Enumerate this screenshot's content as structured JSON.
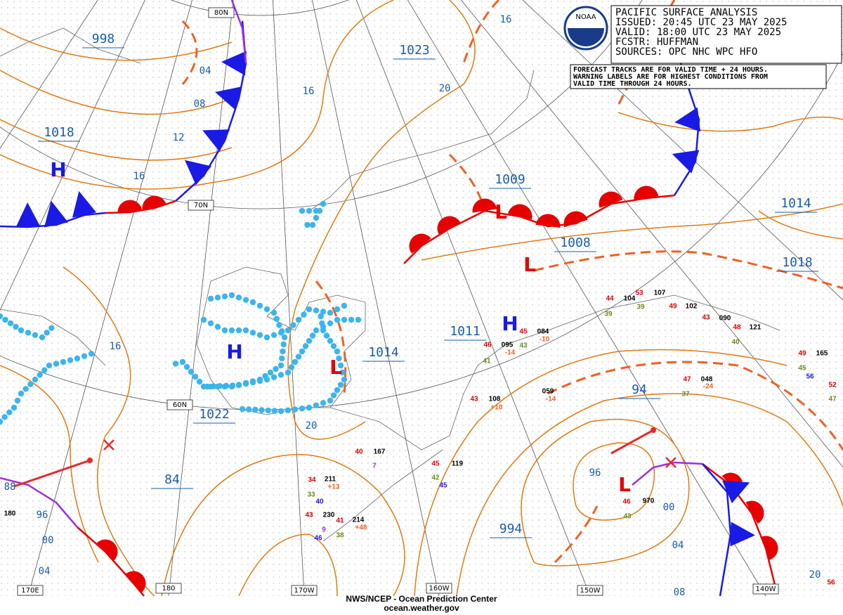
{
  "header": {
    "title": "PACIFIC SURFACE ANALYSIS",
    "issued": "ISSUED: 20:45 UTC 23 MAY 2025",
    "valid": "VALID:  18:00 UTC 23 MAY 2025",
    "forecaster": "FCSTR:  HUFFMAN",
    "sources": "SOURCES: OPC NHC WPC HFO"
  },
  "logo": "NOAA",
  "note": [
    "FORECAST TRACKS ARE FOR VALID TIME + 24 HOURS.",
    "WARNING LABELS ARE FOR HIGHEST CONDITIONS FROM",
    "VALID TIME THROUGH 24 HOURS."
  ],
  "pressure_labels": [
    "998",
    "1018",
    "1023",
    "1009",
    "1014",
    "1008",
    "1018",
    "1011",
    "1014",
    "1022",
    "84",
    "94",
    "994"
  ],
  "centers": [
    "H",
    "H",
    "H",
    "L",
    "L",
    "L",
    "L"
  ],
  "isobar_labels": [
    "04",
    "08",
    "12",
    "16",
    "16",
    "20",
    "16",
    "16",
    "20",
    "96",
    "00",
    "04",
    "88",
    "96",
    "00",
    "04",
    "08",
    "20"
  ],
  "grid_labels": [
    "80N",
    "70N",
    "60N",
    "170E",
    "180",
    "170W",
    "160W",
    "150W",
    "140W"
  ],
  "stations": [
    "40",
    "167",
    "7",
    "211",
    "34",
    "+13",
    "33",
    "40",
    "43",
    "230",
    "41",
    "9",
    "46",
    "38",
    "214",
    "+48",
    "45",
    "119",
    "42",
    "45",
    "43",
    "108",
    "+10",
    "46",
    "095",
    "-14",
    "43",
    "41",
    "45",
    "084",
    "-10",
    "059",
    "-14",
    "47",
    "048",
    "-24",
    "37",
    "46",
    "970",
    "43",
    "44",
    "104",
    "53",
    "107",
    "39",
    "39",
    "49",
    "102",
    "43",
    "090",
    "48",
    "121",
    "40",
    "49",
    "165",
    "45",
    "56",
    "52",
    "47",
    "56",
    "180"
  ],
  "footer": {
    "agency": "NWS/NCEP - Ocean Prediction Center",
    "url": "ocean.weather.gov"
  }
}
